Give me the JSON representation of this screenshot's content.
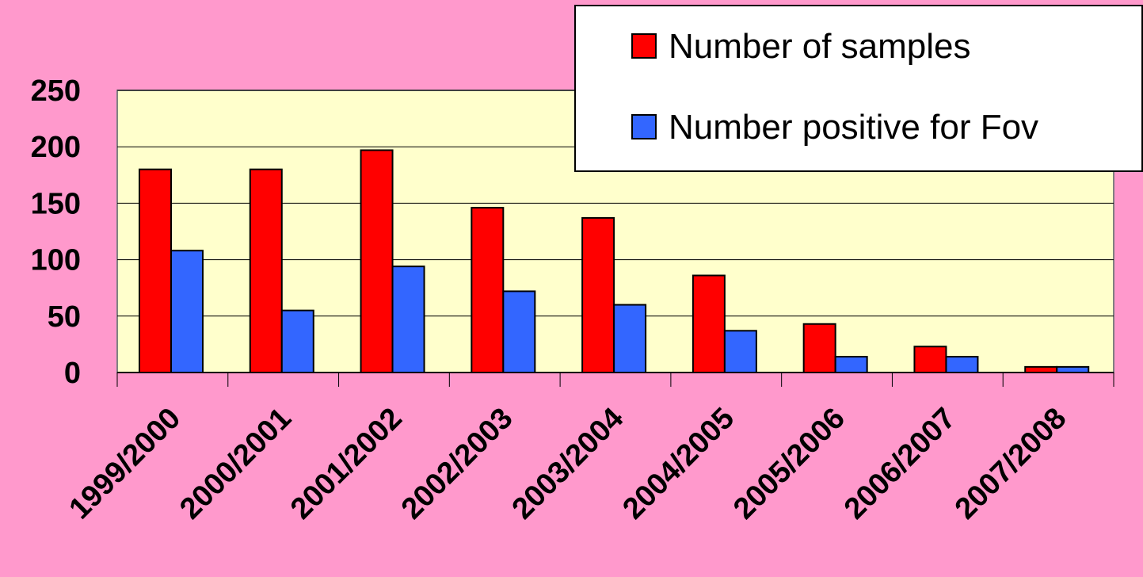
{
  "chart_data": {
    "type": "bar",
    "categories": [
      "1999/2000",
      "2000/2001",
      "2001/2002",
      "2002/2003",
      "2003/2004",
      "2004/2005",
      "2005/2006",
      "2006/2007",
      "2007/2008"
    ],
    "series": [
      {
        "name": "Number of samples",
        "color": "#ff0000",
        "values": [
          180,
          180,
          197,
          146,
          137,
          86,
          43,
          23,
          5
        ]
      },
      {
        "name": "Number positive for Fov",
        "color": "#3366ff",
        "values": [
          108,
          55,
          94,
          72,
          60,
          37,
          14,
          14,
          5
        ]
      }
    ],
    "yticks": [
      "0",
      "50",
      "100",
      "150",
      "200",
      "250"
    ],
    "ylim": [
      0,
      250
    ],
    "grid": true,
    "legend_position": "top-right",
    "plot_background": "#ffffcc",
    "page_background": "#ff99cc"
  }
}
